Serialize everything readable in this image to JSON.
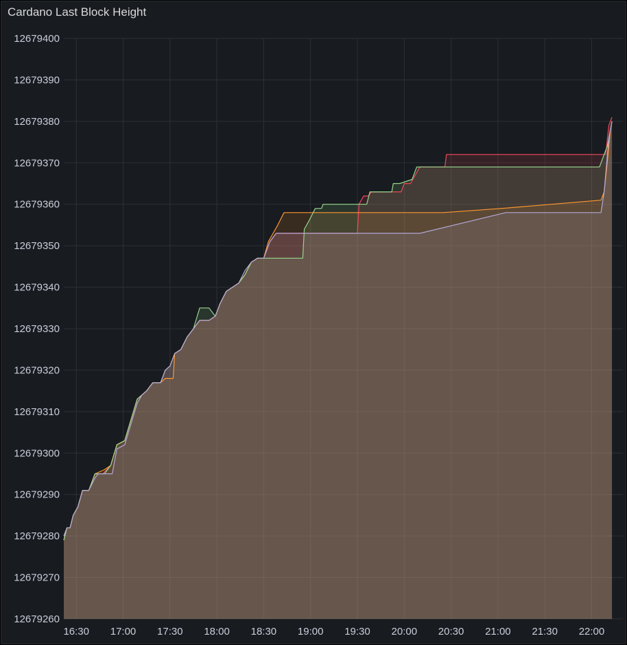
{
  "panel": {
    "title": "Cardano Last Block Height"
  },
  "colors": {
    "panel_bg": "#181b1f",
    "grid": "#2c3035",
    "text": "#ccccdc",
    "area_fill": "#634d37"
  },
  "chart_data": {
    "type": "line",
    "title": "Cardano Last Block Height",
    "xlabel": "",
    "ylabel": "",
    "grid": true,
    "legend": "none",
    "x_unit": "time (HH:MM)",
    "xlim": [
      "16:22",
      "22:20"
    ],
    "ylim": [
      12679260,
      12679400
    ],
    "x_ticks": [
      "16:30",
      "17:00",
      "17:30",
      "18:00",
      "18:30",
      "19:00",
      "19:30",
      "20:00",
      "20:30",
      "21:00",
      "21:30",
      "22:00"
    ],
    "y_ticks": [
      12679400,
      12679390,
      12679380,
      12679370,
      12679360,
      12679350,
      12679340,
      12679330,
      12679320,
      12679310,
      12679300,
      12679290,
      12679280,
      12679270,
      12679260
    ],
    "series": [
      {
        "color": "#f2495c",
        "points": [
          [
            "16:22",
            12679279
          ],
          [
            "16:24",
            12679282
          ],
          [
            "16:26",
            12679282
          ],
          [
            "16:28",
            12679285
          ],
          [
            "16:31",
            12679287
          ],
          [
            "16:34",
            12679291
          ],
          [
            "16:38",
            12679291
          ],
          [
            "16:42",
            12679295
          ],
          [
            "16:47",
            12679295
          ],
          [
            "16:52",
            12679297
          ],
          [
            "16:56",
            12679302
          ],
          [
            "17:01",
            12679303
          ],
          [
            "17:05",
            12679308
          ],
          [
            "17:09",
            12679313
          ],
          [
            "17:12",
            12679314
          ],
          [
            "17:15",
            12679315
          ],
          [
            "17:19",
            12679317
          ],
          [
            "17:24",
            12679317
          ],
          [
            "17:27",
            12679320
          ],
          [
            "17:30",
            12679321
          ],
          [
            "17:33",
            12679324
          ],
          [
            "17:37",
            12679325
          ],
          [
            "17:41",
            12679328
          ],
          [
            "17:45",
            12679330
          ],
          [
            "17:49",
            12679332
          ],
          [
            "17:52",
            12679332
          ],
          [
            "17:55",
            12679332
          ],
          [
            "17:59",
            12679333
          ],
          [
            "18:02",
            12679336
          ],
          [
            "18:06",
            12679339
          ],
          [
            "18:10",
            12679340
          ],
          [
            "18:14",
            12679341
          ],
          [
            "18:18",
            12679343
          ],
          [
            "18:22",
            12679346
          ],
          [
            "18:26",
            12679347
          ],
          [
            "18:30",
            12679347
          ],
          [
            "18:34",
            12679351
          ],
          [
            "18:38",
            12679353
          ],
          [
            "18:42",
            12679353
          ],
          [
            "19:30",
            12679353
          ],
          [
            "19:31",
            12679360
          ],
          [
            "19:34",
            12679362
          ],
          [
            "19:37",
            12679362
          ],
          [
            "19:39",
            12679363
          ],
          [
            "19:48",
            12679363
          ],
          [
            "19:51",
            12679363
          ],
          [
            "19:58",
            12679363
          ],
          [
            "20:00",
            12679365
          ],
          [
            "20:04",
            12679365
          ],
          [
            "20:07",
            12679367
          ],
          [
            "20:10",
            12679369
          ],
          [
            "20:26",
            12679369
          ],
          [
            "20:27",
            12679372
          ],
          [
            "22:07",
            12679372
          ],
          [
            "22:09",
            12679372
          ],
          [
            "22:11",
            12679379
          ],
          [
            "22:13",
            12679381
          ]
        ]
      },
      {
        "color": "#ff9830",
        "points": [
          [
            "16:22",
            12679279
          ],
          [
            "16:24",
            12679282
          ],
          [
            "16:26",
            12679282
          ],
          [
            "16:28",
            12679285
          ],
          [
            "16:31",
            12679287
          ],
          [
            "16:34",
            12679291
          ],
          [
            "16:38",
            12679291
          ],
          [
            "16:42",
            12679295
          ],
          [
            "16:48",
            12679296
          ],
          [
            "16:52",
            12679297
          ],
          [
            "16:56",
            12679302
          ],
          [
            "17:01",
            12679303
          ],
          [
            "17:05",
            12679308
          ],
          [
            "17:09",
            12679313
          ],
          [
            "17:12",
            12679314
          ],
          [
            "17:15",
            12679315
          ],
          [
            "17:19",
            12679317
          ],
          [
            "17:24",
            12679317
          ],
          [
            "17:27",
            12679318
          ],
          [
            "17:32",
            12679318
          ],
          [
            "17:33",
            12679324
          ],
          [
            "17:37",
            12679325
          ],
          [
            "17:41",
            12679328
          ],
          [
            "17:45",
            12679330
          ],
          [
            "17:49",
            12679332
          ],
          [
            "17:52",
            12679332
          ],
          [
            "17:55",
            12679332
          ],
          [
            "17:59",
            12679333
          ],
          [
            "18:02",
            12679336
          ],
          [
            "18:06",
            12679339
          ],
          [
            "18:10",
            12679340
          ],
          [
            "18:14",
            12679341
          ],
          [
            "18:18",
            12679343
          ],
          [
            "18:22",
            12679346
          ],
          [
            "18:26",
            12679347
          ],
          [
            "18:30",
            12679347
          ],
          [
            "18:33",
            12679351
          ],
          [
            "18:36",
            12679353
          ],
          [
            "18:39",
            12679355
          ],
          [
            "18:43",
            12679358
          ],
          [
            "20:25",
            12679358
          ],
          [
            "21:02",
            12679359
          ],
          [
            "22:06",
            12679361
          ],
          [
            "22:08",
            12679363
          ],
          [
            "22:10",
            12679370
          ],
          [
            "22:12",
            12679378
          ],
          [
            "22:13",
            12679380
          ]
        ]
      },
      {
        "color": "#96d98d",
        "points": [
          [
            "16:22",
            12679279
          ],
          [
            "16:24",
            12679282
          ],
          [
            "16:26",
            12679282
          ],
          [
            "16:28",
            12679285
          ],
          [
            "16:31",
            12679287
          ],
          [
            "16:34",
            12679291
          ],
          [
            "16:38",
            12679291
          ],
          [
            "16:42",
            12679295
          ],
          [
            "16:48",
            12679295
          ],
          [
            "16:52",
            12679297
          ],
          [
            "16:56",
            12679302
          ],
          [
            "17:01",
            12679303
          ],
          [
            "17:05",
            12679308
          ],
          [
            "17:09",
            12679313
          ],
          [
            "17:12",
            12679314
          ],
          [
            "17:15",
            12679315
          ],
          [
            "17:19",
            12679317
          ],
          [
            "17:24",
            12679317
          ],
          [
            "17:27",
            12679320
          ],
          [
            "17:30",
            12679321
          ],
          [
            "17:33",
            12679324
          ],
          [
            "17:37",
            12679325
          ],
          [
            "17:41",
            12679328
          ],
          [
            "17:45",
            12679330
          ],
          [
            "17:49",
            12679335
          ],
          [
            "17:55",
            12679335
          ],
          [
            "17:59",
            12679333
          ],
          [
            "18:02",
            12679336
          ],
          [
            "18:06",
            12679339
          ],
          [
            "18:10",
            12679340
          ],
          [
            "18:14",
            12679341
          ],
          [
            "18:18",
            12679343
          ],
          [
            "18:22",
            12679346
          ],
          [
            "18:26",
            12679347
          ],
          [
            "18:55",
            12679347
          ],
          [
            "18:56",
            12679354
          ],
          [
            "18:59",
            12679356
          ],
          [
            "19:03",
            12679359
          ],
          [
            "19:07",
            12679359
          ],
          [
            "19:08",
            12679360
          ],
          [
            "19:36",
            12679360
          ],
          [
            "19:38",
            12679363
          ],
          [
            "19:52",
            12679363
          ],
          [
            "19:53",
            12679365
          ],
          [
            "19:57",
            12679365
          ],
          [
            "20:05",
            12679366
          ],
          [
            "20:08",
            12679369
          ],
          [
            "22:05",
            12679369
          ],
          [
            "22:10",
            12679374
          ],
          [
            "22:13",
            12679380
          ]
        ]
      },
      {
        "color": "#b4a9d6",
        "points": [
          [
            "16:22",
            12679280
          ],
          [
            "16:24",
            12679282
          ],
          [
            "16:26",
            12679282
          ],
          [
            "16:28",
            12679285
          ],
          [
            "16:31",
            12679287
          ],
          [
            "16:34",
            12679291
          ],
          [
            "16:38",
            12679291
          ],
          [
            "16:42",
            12679294
          ],
          [
            "16:44",
            12679295
          ],
          [
            "16:53",
            12679295
          ],
          [
            "16:56",
            12679301
          ],
          [
            "17:01",
            12679302
          ],
          [
            "17:05",
            12679307
          ],
          [
            "17:09",
            12679312
          ],
          [
            "17:12",
            12679314
          ],
          [
            "17:15",
            12679315
          ],
          [
            "17:19",
            12679317
          ],
          [
            "17:24",
            12679317
          ],
          [
            "17:27",
            12679320
          ],
          [
            "17:30",
            12679321
          ],
          [
            "17:33",
            12679324
          ],
          [
            "17:37",
            12679325
          ],
          [
            "17:41",
            12679328
          ],
          [
            "17:45",
            12679330
          ],
          [
            "17:49",
            12679332
          ],
          [
            "17:55",
            12679332
          ],
          [
            "17:59",
            12679333
          ],
          [
            "18:02",
            12679336
          ],
          [
            "18:06",
            12679339
          ],
          [
            "18:10",
            12679340
          ],
          [
            "18:14",
            12679341
          ],
          [
            "18:18",
            12679344
          ],
          [
            "18:22",
            12679346
          ],
          [
            "18:26",
            12679347
          ],
          [
            "18:30",
            12679347
          ],
          [
            "18:34",
            12679351
          ],
          [
            "18:38",
            12679353
          ],
          [
            "19:30",
            12679353
          ],
          [
            "20:10",
            12679353
          ],
          [
            "21:05",
            12679358
          ],
          [
            "22:06",
            12679358
          ],
          [
            "22:08",
            12679363
          ],
          [
            "22:11",
            12679376
          ],
          [
            "22:13",
            12679380
          ]
        ]
      }
    ]
  }
}
